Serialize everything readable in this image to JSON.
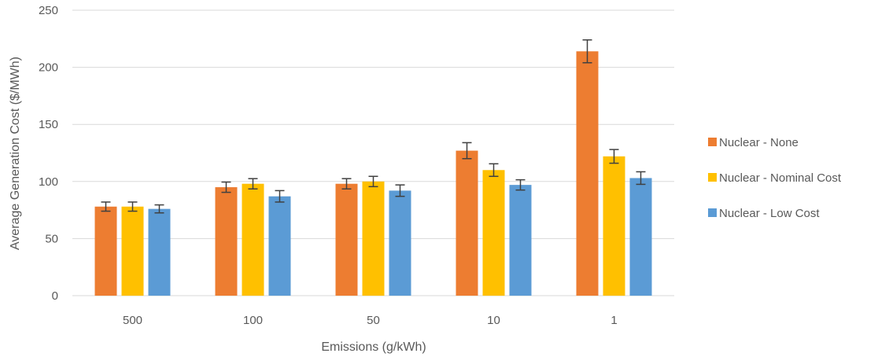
{
  "chart_data": {
    "type": "bar",
    "title": "",
    "xlabel": "Emissions (g/kWh)",
    "ylabel": "Average Generation Cost ($/MWh)",
    "categories": [
      "500",
      "100",
      "50",
      "10",
      "1"
    ],
    "ylim": [
      0,
      250
    ],
    "yticks": [
      0,
      50,
      100,
      150,
      200,
      250
    ],
    "grid": true,
    "legend_position": "right",
    "series": [
      {
        "name": "Nuclear - None",
        "color": "#ED7D31",
        "values": [
          78,
          95,
          98,
          127,
          214
        ],
        "errors": [
          4,
          4.5,
          4.5,
          7,
          10
        ]
      },
      {
        "name": "Nuclear - Nominal Cost",
        "color": "#FFC000",
        "values": [
          78,
          98,
          100,
          110,
          122
        ],
        "errors": [
          4,
          4.5,
          4.5,
          5.5,
          6
        ]
      },
      {
        "name": "Nuclear - Low Cost",
        "color": "#5B9BD5",
        "values": [
          76,
          87,
          92,
          97,
          103
        ],
        "errors": [
          3.5,
          5,
          5,
          4.5,
          5.5
        ]
      }
    ]
  },
  "colors": {
    "gridline": "#D9D9D9",
    "text": "#595959",
    "error_bar": "#404040"
  }
}
